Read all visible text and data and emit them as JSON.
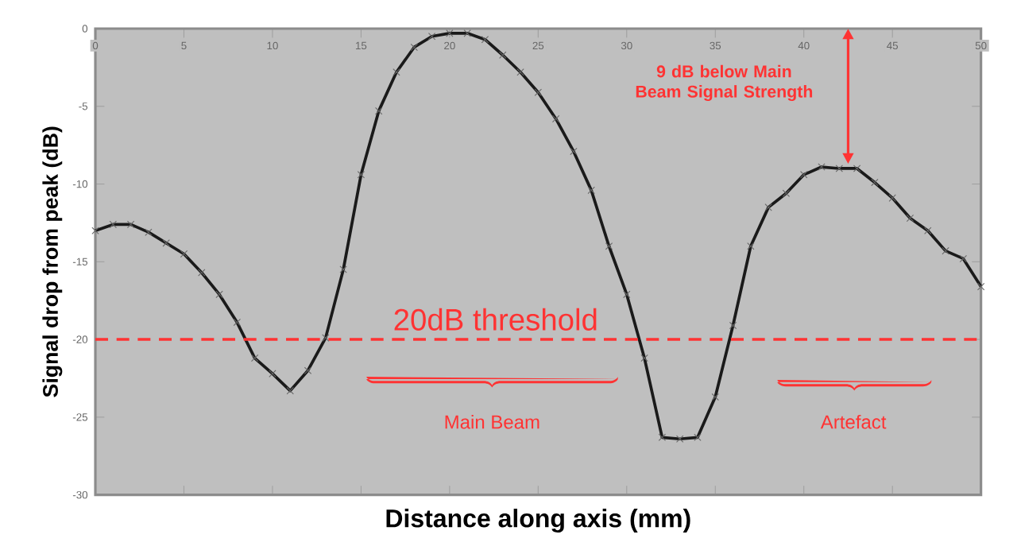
{
  "chart_data": {
    "type": "line",
    "xlabel": "Distance along axis (mm)",
    "ylabel": "Signal drop from peak (dB)",
    "x": [
      0,
      1,
      2,
      3,
      4,
      5,
      6,
      7,
      8,
      9,
      10,
      11,
      12,
      13,
      14,
      15,
      16,
      17,
      18,
      19,
      20,
      21,
      22,
      23,
      24,
      25,
      26,
      27,
      28,
      29,
      30,
      31,
      32,
      33,
      34,
      35,
      36,
      37,
      38,
      39,
      40,
      41,
      42,
      43,
      44,
      45,
      46,
      47,
      48,
      49,
      50
    ],
    "series": [
      {
        "color": "#1a1a1a",
        "values": [
          -13,
          -12.6,
          -12.6,
          -13.1,
          -13.8,
          -14.5,
          -15.7,
          -17.1,
          -18.9,
          -21.2,
          -22.2,
          -23.3,
          -22,
          -19.9,
          -15.5,
          -9.4,
          -5.3,
          -2.8,
          -1.2,
          -0.5,
          -0.3,
          -0.3,
          -0.7,
          -1.7,
          -2.8,
          -4.1,
          -5.8,
          -7.9,
          -10.4,
          -14,
          -17.1,
          -21.2,
          -26.3,
          -26.4,
          -26.3,
          -23.7,
          -19.1,
          -14,
          -11.5,
          -10.6,
          -9.4,
          -8.9,
          -9,
          -9,
          -9.9,
          -10.9,
          -12.2,
          -13,
          -14.3,
          -14.8,
          -16.6
        ]
      }
    ],
    "xlim": [
      0,
      50
    ],
    "ylim": [
      -30,
      0
    ],
    "xticks": [
      0,
      5,
      10,
      15,
      20,
      25,
      30,
      35,
      40,
      45,
      50
    ],
    "yticks": [
      -30,
      -25,
      -20,
      -15,
      -10,
      -5,
      0
    ],
    "marker": "cross",
    "line_style": "solid",
    "ref_lines": [
      {
        "axis": "y",
        "value": -20,
        "label": "20dB threshold",
        "color": "#ff3333",
        "line_style": "dashed"
      }
    ],
    "annotations": [
      "9 dB below Main Beam Signal Strength",
      "Main Beam",
      "Artefact"
    ]
  }
}
